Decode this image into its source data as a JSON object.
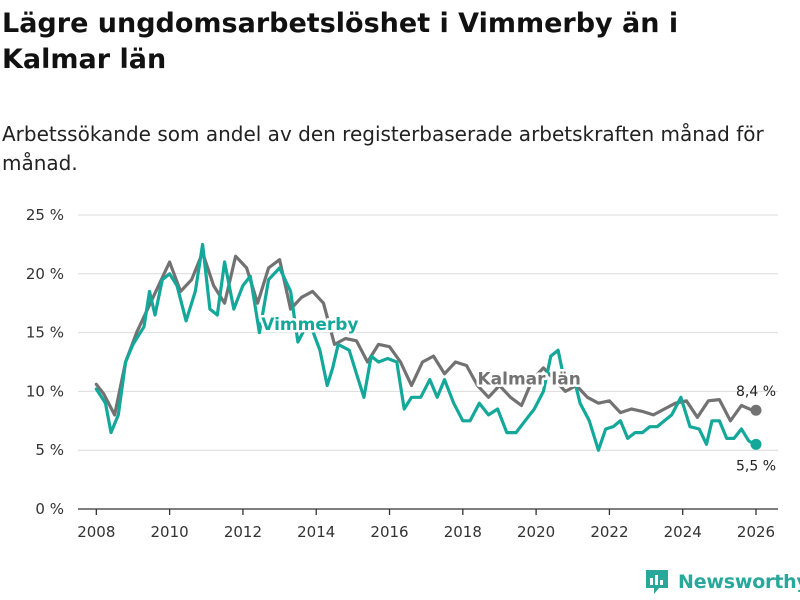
{
  "title": "Lägre ungdomsarbetslöshet i Vimmerby än i Kalmar län",
  "subtitle": "Arbetssökande som andel av den registerbaserade arbetskraften månad för månad.",
  "brand": "Newsworthy",
  "colors": {
    "vimmerby": "#13a89a",
    "kalmar": "#727272",
    "grid": "#dcdcdc",
    "axis": "#333333",
    "brand": "#27a89a"
  },
  "chart_data": {
    "type": "line",
    "title": "Lägre ungdomsarbetslöshet i Vimmerby än i Kalmar län",
    "xlabel": "",
    "ylabel": "",
    "ylim": [
      0,
      25
    ],
    "xlim": [
      2007.5,
      2026.6
    ],
    "y_ticks": [
      0,
      5,
      10,
      15,
      20,
      25
    ],
    "y_tick_labels": [
      "0 %",
      "5 %",
      "10 %",
      "15 %",
      "20 %",
      "25 %"
    ],
    "x_ticks": [
      2008,
      2010,
      2012,
      2014,
      2016,
      2018,
      2020,
      2022,
      2024,
      2026
    ],
    "x_tick_labels": [
      "2008",
      "2010",
      "2012",
      "2014",
      "2016",
      "2018",
      "2020",
      "2022",
      "2024",
      "2026"
    ],
    "grid": true,
    "series": [
      {
        "name": "Kalmar län",
        "label": "Kalmar län",
        "end_label": "8,4 %",
        "x": [
          2008.0,
          2008.2,
          2008.5,
          2008.8,
          2009.1,
          2009.4,
          2009.7,
          2010.0,
          2010.3,
          2010.6,
          2010.9,
          2011.2,
          2011.5,
          2011.8,
          2012.1,
          2012.4,
          2012.7,
          2013.0,
          2013.3,
          2013.6,
          2013.9,
          2014.2,
          2014.5,
          2014.8,
          2015.1,
          2015.4,
          2015.7,
          2016.0,
          2016.3,
          2016.6,
          2016.9,
          2017.2,
          2017.5,
          2017.8,
          2018.1,
          2018.4,
          2018.7,
          2019.0,
          2019.3,
          2019.6,
          2019.9,
          2020.2,
          2020.5,
          2020.8,
          2021.1,
          2021.4,
          2021.7,
          2022.0,
          2022.3,
          2022.6,
          2022.9,
          2023.2,
          2023.5,
          2023.8,
          2024.1,
          2024.4,
          2024.7,
          2025.0,
          2025.3,
          2025.6,
          2025.9,
          2026.0
        ],
        "values": [
          10.6,
          9.8,
          8.0,
          12.5,
          15.0,
          17.0,
          19.0,
          21.0,
          18.5,
          19.5,
          21.8,
          19.0,
          17.5,
          21.5,
          20.5,
          17.5,
          20.5,
          21.2,
          17.0,
          18.0,
          18.5,
          17.5,
          14.0,
          14.5,
          14.3,
          12.5,
          14.0,
          13.8,
          12.5,
          10.5,
          12.5,
          13.0,
          11.5,
          12.5,
          12.2,
          10.5,
          9.5,
          10.5,
          9.5,
          8.8,
          11.0,
          12.0,
          11.0,
          10.0,
          10.5,
          9.5,
          9.0,
          9.2,
          8.2,
          8.5,
          8.3,
          8.0,
          8.5,
          9.0,
          9.2,
          7.8,
          9.2,
          9.3,
          7.5,
          8.8,
          8.4,
          8.4
        ]
      },
      {
        "name": "Vimmerby",
        "label": "Vimmerby",
        "end_label": "5,5 %",
        "x": [
          2008.0,
          2008.25,
          2008.4,
          2008.6,
          2008.8,
          2009.0,
          2009.3,
          2009.45,
          2009.6,
          2009.8,
          2010.0,
          2010.2,
          2010.45,
          2010.7,
          2010.9,
          2011.1,
          2011.3,
          2011.5,
          2011.75,
          2012.0,
          2012.2,
          2012.45,
          2012.7,
          2013.0,
          2013.3,
          2013.5,
          2013.8,
          2014.1,
          2014.3,
          2014.45,
          2014.6,
          2014.9,
          2015.1,
          2015.3,
          2015.5,
          2015.7,
          2015.95,
          2016.2,
          2016.4,
          2016.6,
          2016.85,
          2017.1,
          2017.3,
          2017.5,
          2017.75,
          2018.0,
          2018.2,
          2018.45,
          2018.7,
          2018.95,
          2019.2,
          2019.45,
          2019.7,
          2019.95,
          2020.2,
          2020.4,
          2020.6,
          2020.8,
          2021.0,
          2021.2,
          2021.45,
          2021.7,
          2021.9,
          2022.1,
          2022.3,
          2022.5,
          2022.7,
          2022.9,
          2023.1,
          2023.3,
          2023.5,
          2023.7,
          2023.95,
          2024.2,
          2024.45,
          2024.65,
          2024.8,
          2025.0,
          2025.2,
          2025.4,
          2025.6,
          2025.8,
          2025.95,
          2026.0
        ],
        "values": [
          10.2,
          9.0,
          6.5,
          8.0,
          12.5,
          14.0,
          15.5,
          18.5,
          16.5,
          19.5,
          20.0,
          19.0,
          16.0,
          18.5,
          22.5,
          17.0,
          16.5,
          21.0,
          17.0,
          19.0,
          19.8,
          15.0,
          19.5,
          20.5,
          18.5,
          14.2,
          16.0,
          13.5,
          10.5,
          12.0,
          14.0,
          13.5,
          11.5,
          9.5,
          13.0,
          12.5,
          12.8,
          12.5,
          8.5,
          9.5,
          9.5,
          11.0,
          9.5,
          11.0,
          9.0,
          7.5,
          7.5,
          9.0,
          8.0,
          8.5,
          6.5,
          6.5,
          7.5,
          8.5,
          10.0,
          13.0,
          13.5,
          10.5,
          11.5,
          9.0,
          7.5,
          5.0,
          6.8,
          7.0,
          7.5,
          6.0,
          6.5,
          6.5,
          7.0,
          7.0,
          7.5,
          8.0,
          9.5,
          7.0,
          6.8,
          5.5,
          7.5,
          7.5,
          6.0,
          6.0,
          6.8,
          5.8,
          5.5,
          5.5
        ]
      }
    ]
  }
}
